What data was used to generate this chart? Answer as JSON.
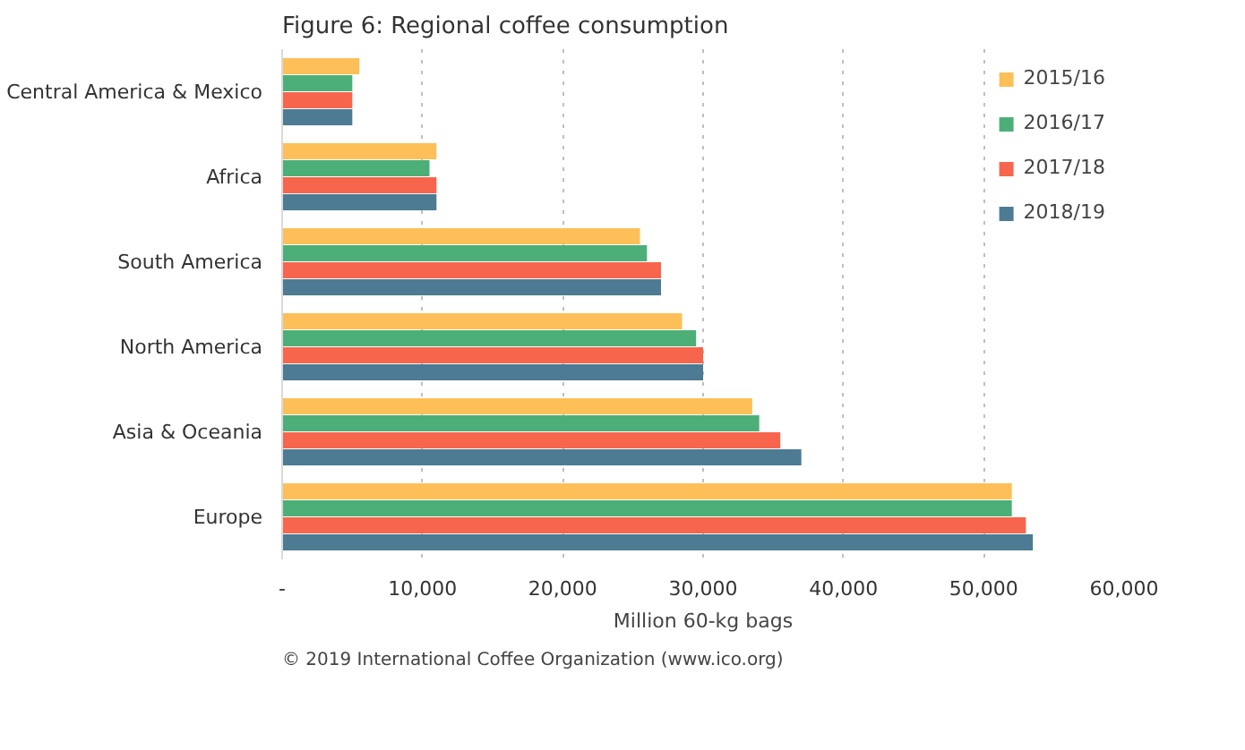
{
  "chart_data": {
    "type": "bar",
    "orientation": "horizontal",
    "title": "Figure 6: Regional coffee consumption",
    "xlabel": "Million 60-kg bags",
    "categories": [
      "Central America & Mexico",
      "Africa",
      "South America",
      "North America",
      "Asia & Oceania",
      "Europe"
    ],
    "series": [
      {
        "name": "2015/16",
        "color": "#fdbf57",
        "values": [
          5500,
          11000,
          25500,
          28500,
          33500,
          52000
        ]
      },
      {
        "name": "2016/17",
        "color": "#4caf78",
        "values": [
          5000,
          10500,
          26000,
          29500,
          34000,
          52000
        ]
      },
      {
        "name": "2017/18",
        "color": "#f8654d",
        "values": [
          5000,
          11000,
          27000,
          30000,
          35500,
          53000
        ]
      },
      {
        "name": "2018/19",
        "color": "#4d7b93",
        "values": [
          5000,
          11000,
          27000,
          30000,
          37000,
          53500
        ]
      }
    ],
    "xlim": [
      0,
      60000
    ],
    "xticks": [
      {
        "value": 0,
        "label": "-"
      },
      {
        "value": 10000,
        "label": "10,000"
      },
      {
        "value": 20000,
        "label": "20,000"
      },
      {
        "value": 30000,
        "label": "30,000"
      },
      {
        "value": 40000,
        "label": "40,000"
      },
      {
        "value": 50000,
        "label": "50,000"
      },
      {
        "value": 60000,
        "label": "60,000"
      }
    ],
    "grid": "x",
    "legend": "top right",
    "annotations": [
      "© 2019 International Coffee Organization (www.ico.org)"
    ]
  }
}
